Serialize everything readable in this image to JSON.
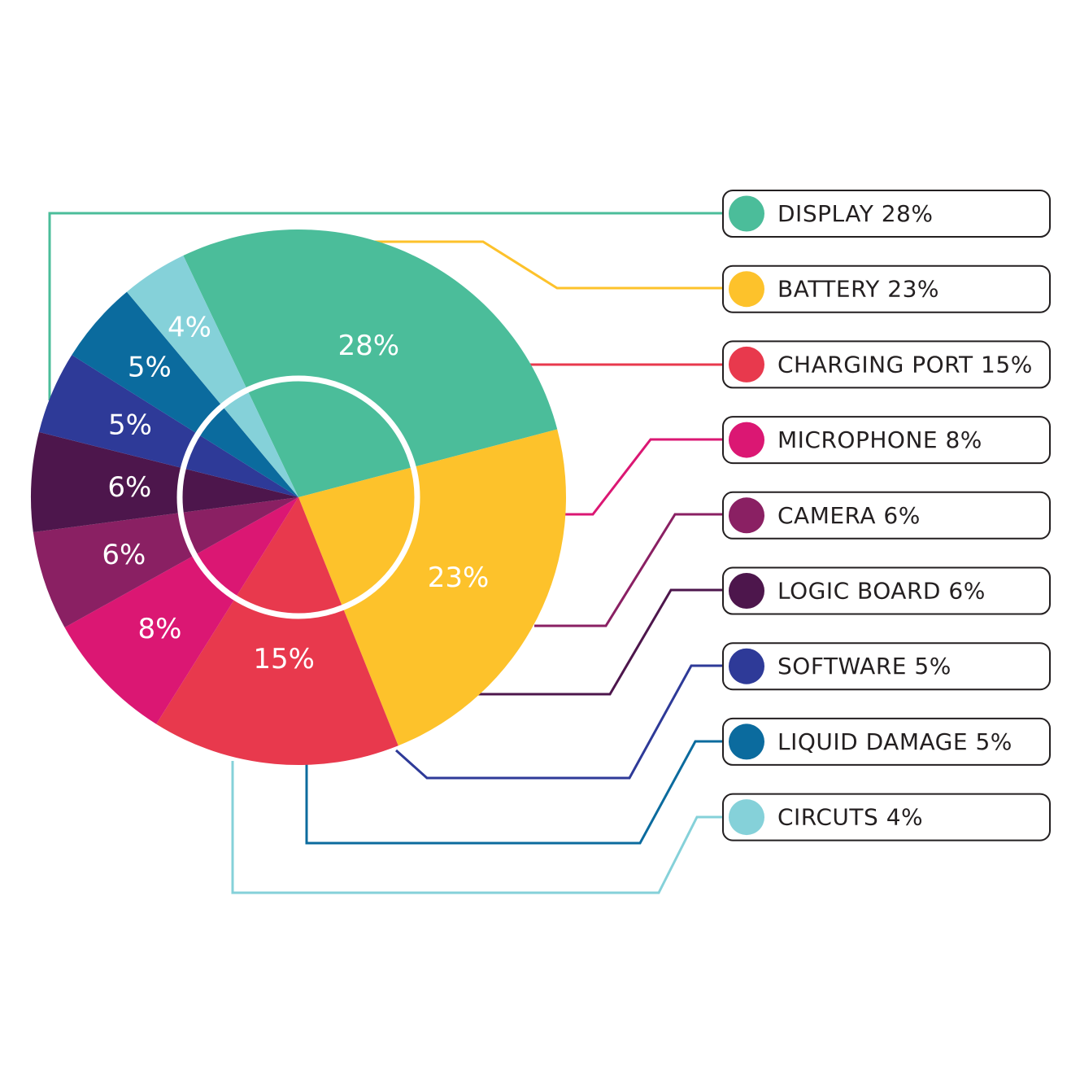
{
  "chart_data": {
    "type": "pie",
    "slices": [
      {
        "name": "DISPLAY",
        "value": 28,
        "slice_label": "28%",
        "legend_label": "DISPLAY 28%",
        "color": "#4bbd9a"
      },
      {
        "name": "BATTERY",
        "value": 23,
        "slice_label": "23%",
        "legend_label": "BATTERY 23%",
        "color": "#fdc22b"
      },
      {
        "name": "CHARGING PORT",
        "value": 15,
        "slice_label": "15%",
        "legend_label": "CHARGING PORT 15%",
        "color": "#e8394d"
      },
      {
        "name": "MICROPHONE",
        "value": 8,
        "slice_label": "8%",
        "legend_label": "MICROPHONE 8%",
        "color": "#db1773"
      },
      {
        "name": "CAMERA",
        "value": 6,
        "slice_label": "6%",
        "legend_label": "CAMERA 6%",
        "color": "#8a2063"
      },
      {
        "name": "LOGIC BOARD",
        "value": 6,
        "slice_label": "6%",
        "legend_label": "LOGIC BOARD 6%",
        "color": "#4d164c"
      },
      {
        "name": "SOFTWARE",
        "value": 5,
        "slice_label": "5%",
        "legend_label": "SOFTWARE 5%",
        "color": "#2e3a98"
      },
      {
        "name": "LIQUID DAMAGE",
        "value": 5,
        "slice_label": "5%",
        "legend_label": "LIQUID DAMAGE 5%",
        "color": "#0b6b9e"
      },
      {
        "name": "CIRCUTS",
        "value": 4,
        "slice_label": "4%",
        "legend_label": "CIRCUTS 4%",
        "color": "#85d1d9"
      }
    ],
    "legend_position": "right"
  }
}
